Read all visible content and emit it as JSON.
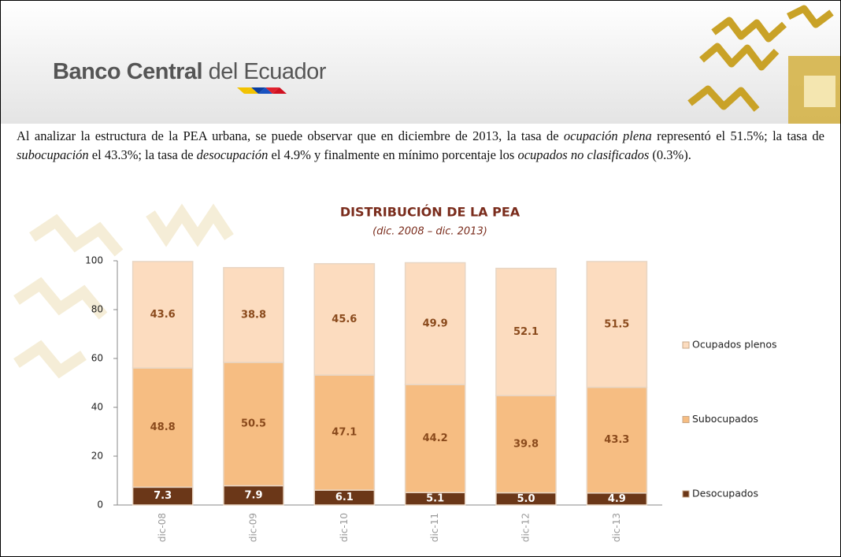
{
  "header": {
    "title_bold": "Banco Central",
    "title_rest": "del Ecuador"
  },
  "paragraph": [
    {
      "text": "Al analizar la estructura de la PEA urbana, se puede observar que en diciembre de 2013, la tasa de ",
      "italic": false
    },
    {
      "text": "ocupación plena",
      "italic": true
    },
    {
      "text": " representó el 51.5%; la tasa de ",
      "italic": false
    },
    {
      "text": "subocupación",
      "italic": true
    },
    {
      "text": " el 43.3%; la tasa de ",
      "italic": false
    },
    {
      "text": "desocupación",
      "italic": true
    },
    {
      "text": " el 4.9% y finalmente en mínimo porcentaje los ",
      "italic": false
    },
    {
      "text": "ocupados no clasificados",
      "italic": true
    },
    {
      "text": " (0.3%).",
      "italic": false
    }
  ],
  "chart_data": {
    "type": "bar",
    "stacked": true,
    "title": "DISTRIBUCIÓN DE LA PEA",
    "subtitle": "(dic. 2008 – dic. 2013)",
    "categories": [
      "dic-08",
      "dic-09",
      "dic-10",
      "dic-11",
      "dic-12",
      "dic-13"
    ],
    "series": [
      {
        "name": "Desocupados",
        "color": "#6b3718",
        "label_color": "#ffffff",
        "values": [
          7.3,
          7.9,
          6.1,
          5.1,
          5.0,
          4.9
        ],
        "value_labels": [
          "7.3",
          "7.9",
          "6.1",
          "5.1",
          "5.0",
          "4.9"
        ]
      },
      {
        "name": "Subocupados",
        "color": "#f6bd82",
        "label_color": "#8a4a1c",
        "values": [
          48.8,
          50.5,
          47.1,
          44.2,
          39.8,
          43.3
        ]
      },
      {
        "name": "Ocupados plenos",
        "color": "#fcdcbf",
        "label_color": "#8a4a1c",
        "values": [
          43.6,
          38.8,
          45.6,
          49.9,
          52.1,
          51.5
        ]
      }
    ],
    "ylim": [
      0,
      100
    ],
    "yticks": [
      0,
      20,
      40,
      60,
      80,
      100
    ]
  }
}
